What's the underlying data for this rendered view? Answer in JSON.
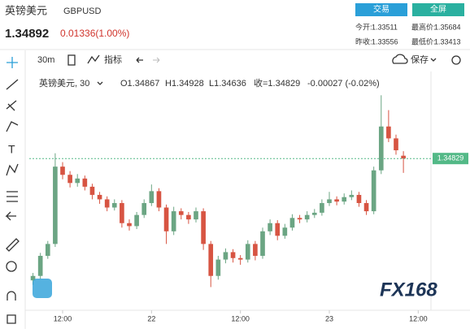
{
  "header": {
    "name": "英镑美元",
    "symbol": "GBPUSD",
    "price": "1.34892",
    "change": "0.01336(1.00%)",
    "buttons": [
      "交易",
      "全屏"
    ],
    "stats": [
      [
        "今开:",
        "1.33511",
        "最高价:",
        "1.35684"
      ],
      [
        "昨收:",
        "1.33556",
        "最低价:",
        "1.33413"
      ]
    ]
  },
  "toolbar": {
    "interval": "30m",
    "indicators": "指标",
    "save": "保存"
  },
  "legend": {
    "title": "英镑美元, 30",
    "items": [
      "O1.34867",
      "H1.34928",
      "L1.34636",
      "收=1.34829",
      "-0.00027 (-0.02%)"
    ]
  },
  "watermark": "FX168",
  "chart_data": {
    "type": "candlestick",
    "up_color": "#6ba583",
    "down_color": "#d75442",
    "xlim": [
      -0.5,
      53.5
    ],
    "xticks": [
      {
        "value": 4,
        "label": "12:00"
      },
      {
        "value": 16,
        "label": "22"
      },
      {
        "value": 28,
        "label": "12:00"
      },
      {
        "value": 40,
        "label": "23"
      },
      {
        "value": 52,
        "label": "12:00"
      }
    ],
    "ylim": [
      1.3281,
      1.36
    ],
    "last_price": 1.34829,
    "last_color": "#53b987",
    "candles": [
      [
        1.3319,
        1.3329,
        1.3313,
        1.3325
      ],
      [
        1.3325,
        1.3356,
        1.3321,
        1.3352
      ],
      [
        1.3352,
        1.3372,
        1.3348,
        1.3368
      ],
      [
        1.3368,
        1.349,
        1.3364,
        1.3472
      ],
      [
        1.3472,
        1.3478,
        1.3455,
        1.3461
      ],
      [
        1.3461,
        1.3466,
        1.3444,
        1.345
      ],
      [
        1.345,
        1.3462,
        1.3445,
        1.3456
      ],
      [
        1.3456,
        1.346,
        1.344,
        1.3445
      ],
      [
        1.3445,
        1.3449,
        1.3428,
        1.3434
      ],
      [
        1.3434,
        1.3438,
        1.3422,
        1.3428
      ],
      [
        1.3428,
        1.3432,
        1.3412,
        1.3417
      ],
      [
        1.3417,
        1.3428,
        1.3413,
        1.3423
      ],
      [
        1.3423,
        1.3427,
        1.339,
        1.3396
      ],
      [
        1.3396,
        1.3401,
        1.3386,
        1.3392
      ],
      [
        1.3392,
        1.3411,
        1.3388,
        1.3407
      ],
      [
        1.3407,
        1.3428,
        1.3403,
        1.3423
      ],
      [
        1.3423,
        1.3448,
        1.3419,
        1.3439
      ],
      [
        1.3439,
        1.3443,
        1.3412,
        1.3417
      ],
      [
        1.3417,
        1.3421,
        1.3368,
        1.3385
      ],
      [
        1.3385,
        1.3418,
        1.338,
        1.3412
      ],
      [
        1.3412,
        1.3416,
        1.3401,
        1.3407
      ],
      [
        1.3407,
        1.3411,
        1.3395,
        1.3401
      ],
      [
        1.3401,
        1.3417,
        1.3397,
        1.3412
      ],
      [
        1.3412,
        1.3416,
        1.336,
        1.3368
      ],
      [
        1.3368,
        1.3372,
        1.331,
        1.3325
      ],
      [
        1.3325,
        1.3352,
        1.332,
        1.3347
      ],
      [
        1.3347,
        1.3362,
        1.3342,
        1.3357
      ],
      [
        1.3357,
        1.3361,
        1.3343,
        1.3349
      ],
      [
        1.3349,
        1.3353,
        1.334,
        1.3347
      ],
      [
        1.3347,
        1.3373,
        1.3343,
        1.3368
      ],
      [
        1.3368,
        1.3372,
        1.3346,
        1.3352
      ],
      [
        1.3352,
        1.339,
        1.3348,
        1.3385
      ],
      [
        1.3385,
        1.3401,
        1.338,
        1.3396
      ],
      [
        1.3396,
        1.34,
        1.3373,
        1.3379
      ],
      [
        1.3379,
        1.3395,
        1.3375,
        1.339
      ],
      [
        1.339,
        1.3408,
        1.3386,
        1.3403
      ],
      [
        1.3403,
        1.3407,
        1.3396,
        1.3401
      ],
      [
        1.3401,
        1.3412,
        1.3397,
        1.3407
      ],
      [
        1.3407,
        1.3415,
        1.3403,
        1.341
      ],
      [
        1.341,
        1.3428,
        1.3406,
        1.3423
      ],
      [
        1.3423,
        1.3438,
        1.3419,
        1.3428
      ],
      [
        1.3428,
        1.3432,
        1.342,
        1.3425
      ],
      [
        1.3425,
        1.3436,
        1.3421,
        1.3431
      ],
      [
        1.3431,
        1.344,
        1.3427,
        1.3434
      ],
      [
        1.3434,
        1.3438,
        1.3418,
        1.3423
      ],
      [
        1.3423,
        1.3427,
        1.3407,
        1.3412
      ],
      [
        1.3412,
        1.3472,
        1.3408,
        1.3467
      ],
      [
        1.3467,
        1.3568,
        1.3462,
        1.3526
      ],
      [
        1.3526,
        1.3548,
        1.3505,
        1.351
      ],
      [
        1.351,
        1.3515,
        1.3488,
        1.3494
      ],
      [
        1.34867,
        1.34928,
        1.34636,
        1.34829
      ]
    ]
  }
}
